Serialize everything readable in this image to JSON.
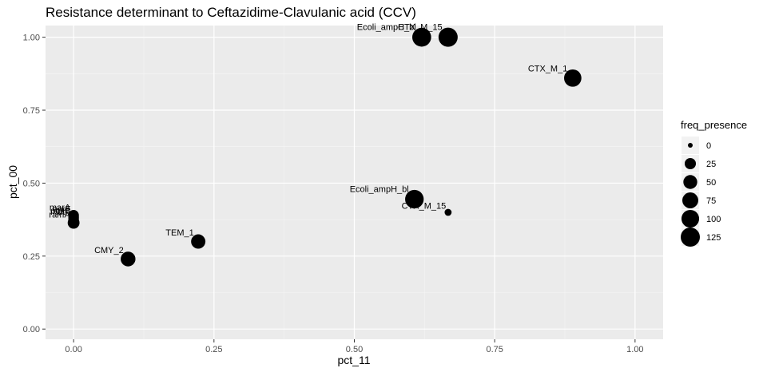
{
  "chart_data": {
    "type": "scatter",
    "title": "Resistance determinant to Ceftazidime-Clavulanic acid (CCV)",
    "xlabel": "pct_11",
    "ylabel": "pct_00",
    "xlim": [
      -0.05,
      1.05
    ],
    "ylim": [
      -0.035,
      1.04
    ],
    "x_ticks": [
      "0.00",
      "0.25",
      "0.50",
      "0.75",
      "1.00"
    ],
    "y_ticks": [
      "0.00",
      "0.25",
      "0.50",
      "0.75",
      "1.00"
    ],
    "grid": true,
    "size_legend": {
      "title": "freq_presence",
      "position": "right",
      "entries": [
        "0",
        "25",
        "50",
        "75",
        "100",
        "125"
      ]
    },
    "points": [
      {
        "label": "Ecoli_ampH_bl",
        "x": 0.62,
        "y": 1.0,
        "size": 120
      },
      {
        "label": "CTX_M_15",
        "x": 0.667,
        "y": 1.0,
        "size": 125
      },
      {
        "label": "CTX_M_1",
        "x": 0.889,
        "y": 0.86,
        "size": 95
      },
      {
        "label": "Ecoli_ampH_bl",
        "x": 0.607,
        "y": 0.445,
        "size": 115
      },
      {
        "label": "CTX_M_15",
        "x": 0.667,
        "y": 0.4,
        "size": 3
      },
      {
        "label": "TEM_1",
        "x": 0.222,
        "y": 0.3,
        "size": 55
      },
      {
        "label": "CMY_2",
        "x": 0.097,
        "y": 0.24,
        "size": 60
      },
      {
        "label": "marA",
        "x": 0.0,
        "y": 0.39,
        "size": 20
      },
      {
        "label": "acrF",
        "x": 0.0,
        "y": 0.385,
        "size": 20
      },
      {
        "label": "oqxB",
        "x": 0.0,
        "y": 0.38,
        "size": 20
      },
      {
        "label": "mdtF",
        "x": 0.0,
        "y": 0.375,
        "size": 20
      },
      {
        "label": "ramA",
        "x": 0.0,
        "y": 0.364,
        "size": 30
      }
    ]
  }
}
